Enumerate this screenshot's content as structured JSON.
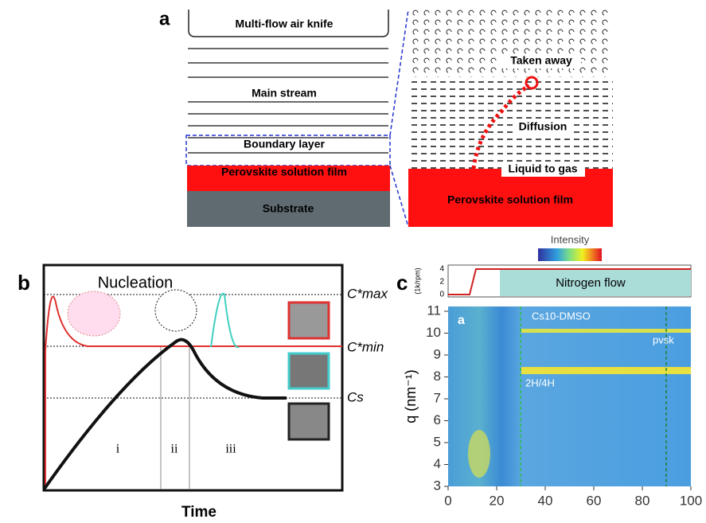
{
  "panel_a": {
    "label": "a",
    "left": {
      "header": "Multi-flow air knife",
      "stream": "Main stream",
      "boundary": "Boundary layer",
      "film": "Perovskite solution film",
      "substrate": "Substrate"
    },
    "right": {
      "taken": "Taken away",
      "diffusion": "Diffusion",
      "liquid": "Liquid to gas",
      "film": "Perovskite solution film"
    }
  },
  "panel_b": {
    "label": "b",
    "title": "Nucleation",
    "levels": {
      "cmax": "C*max",
      "cmin": "C*min",
      "cs": "Cs"
    },
    "stages": [
      "i",
      "ii",
      "iii"
    ],
    "xlabel": "Time"
  },
  "panel_c": {
    "label": "c",
    "colorbar": "Intensity",
    "top_ylabel": "(1k/rpm)",
    "top_yticks": [
      0,
      2,
      4
    ],
    "flow": "Nitrogen flow",
    "inset": "a",
    "ylabel": "q (nm⁻¹)",
    "yticks": [
      3,
      4,
      5,
      6,
      7,
      8,
      9,
      10,
      11
    ],
    "xticks": [
      0,
      20,
      40,
      60,
      80,
      100
    ],
    "annotations": {
      "cs10": "Cs10-DMSO",
      "pvsk": "pvsk",
      "h": "2H/4H"
    }
  }
}
